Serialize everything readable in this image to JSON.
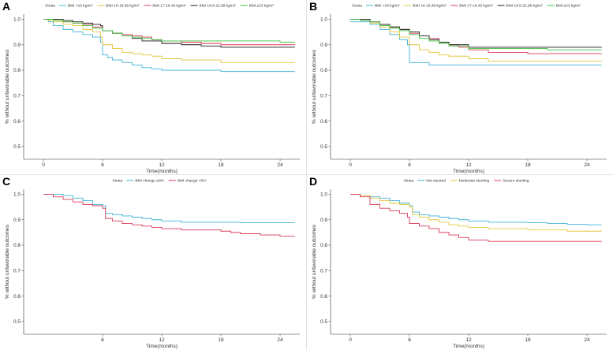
{
  "figure": {
    "y_title": "% without unfavorable outcomes",
    "x_title": "Time(months)",
    "legend_label": "Strata"
  },
  "chart_data": [
    {
      "panel": "A",
      "type": "line",
      "xlabel": "Time(months)",
      "ylabel": "% without unfavorable outcomes",
      "xlim": [
        -2,
        26
      ],
      "ylim": [
        0.45,
        1.02
      ],
      "xticks": [
        0,
        6,
        12,
        18,
        24
      ],
      "yticks": [
        0.5,
        0.6,
        0.7,
        0.8,
        0.9,
        1.0
      ],
      "legend_position": "top",
      "series": [
        {
          "name": "BMI <16 kg/m²",
          "color": "#3fb3d6",
          "x": [
            0,
            0.5,
            1,
            2,
            3,
            4,
            5,
            5.8,
            6,
            6.5,
            7,
            8,
            9,
            10,
            11,
            12,
            14,
            16,
            18,
            20,
            22,
            24,
            25.5
          ],
          "y": [
            1.0,
            0.99,
            0.975,
            0.96,
            0.95,
            0.94,
            0.93,
            0.91,
            0.86,
            0.85,
            0.84,
            0.83,
            0.82,
            0.81,
            0.805,
            0.8,
            0.8,
            0.8,
            0.795,
            0.795,
            0.795,
            0.795,
            0.795
          ]
        },
        {
          "name": "BMI 16-16.99 kg/m²",
          "color": "#e3c63b",
          "x": [
            0,
            0.5,
            1,
            2,
            3,
            4,
            5,
            5.8,
            6,
            7,
            8,
            9,
            10,
            11,
            12,
            14,
            18,
            20,
            24,
            25.5
          ],
          "y": [
            1.0,
            0.995,
            0.99,
            0.98,
            0.975,
            0.96,
            0.95,
            0.93,
            0.9,
            0.885,
            0.87,
            0.865,
            0.86,
            0.855,
            0.845,
            0.84,
            0.83,
            0.83,
            0.83,
            0.83
          ]
        },
        {
          "name": "BMI 17-18.49 kg/m²",
          "color": "#d93a5a",
          "x": [
            0,
            1,
            2,
            3,
            4,
            5,
            6,
            7,
            8,
            9,
            10,
            11,
            12,
            14,
            16,
            18,
            20,
            24,
            25.5
          ],
          "y": [
            1.0,
            0.995,
            0.99,
            0.985,
            0.98,
            0.97,
            0.955,
            0.945,
            0.94,
            0.935,
            0.93,
            0.92,
            0.915,
            0.91,
            0.905,
            0.9,
            0.9,
            0.9,
            0.9
          ]
        },
        {
          "name": "BMI 18.5-22.99 kg/m²",
          "color": "#1a1a1a",
          "x": [
            0,
            1,
            2,
            3,
            4,
            5,
            5.8,
            6,
            7,
            8,
            9,
            10,
            12,
            14,
            16,
            18,
            20,
            24,
            25.5
          ],
          "y": [
            1.0,
            1.0,
            0.995,
            0.99,
            0.985,
            0.98,
            0.975,
            0.955,
            0.945,
            0.935,
            0.925,
            0.915,
            0.905,
            0.9,
            0.895,
            0.89,
            0.89,
            0.89,
            0.89
          ]
        },
        {
          "name": "BMI ≥23 kg/m²",
          "color": "#3fc23f",
          "x": [
            0,
            1,
            2,
            3,
            4,
            5,
            6,
            7,
            8,
            9,
            10,
            11,
            12,
            14,
            24,
            25.5
          ],
          "y": [
            1.0,
            0.995,
            0.99,
            0.985,
            0.975,
            0.965,
            0.955,
            0.945,
            0.935,
            0.93,
            0.925,
            0.92,
            0.915,
            0.915,
            0.91,
            0.91
          ]
        }
      ]
    },
    {
      "panel": "B",
      "type": "line",
      "xlabel": "Time(months)",
      "ylabel": "% without unfavorable outcomes",
      "xlim": [
        -2,
        26
      ],
      "ylim": [
        0.45,
        1.02
      ],
      "xticks": [
        0,
        6,
        12,
        18,
        24
      ],
      "yticks": [
        0.5,
        0.6,
        0.7,
        0.8,
        0.9,
        1.0
      ],
      "legend_position": "top",
      "series": [
        {
          "name": "BMI <16 kg/m²",
          "color": "#3fb3d6",
          "x": [
            0,
            1,
            2,
            3,
            4,
            5,
            5.8,
            6,
            7,
            8,
            10,
            12,
            18,
            24,
            25.5
          ],
          "y": [
            0.99,
            0.99,
            0.98,
            0.96,
            0.94,
            0.92,
            0.9,
            0.83,
            0.83,
            0.82,
            0.82,
            0.82,
            0.82,
            0.82,
            0.82
          ]
        },
        {
          "name": "BMI 16-16.99 kg/m²",
          "color": "#e3c63b",
          "x": [
            0,
            1,
            2,
            3,
            4,
            5,
            6,
            7,
            8,
            9,
            10,
            12,
            14,
            18,
            24,
            25.5
          ],
          "y": [
            1.0,
            0.995,
            0.985,
            0.97,
            0.95,
            0.93,
            0.9,
            0.88,
            0.87,
            0.86,
            0.855,
            0.845,
            0.835,
            0.835,
            0.835,
            0.835
          ]
        },
        {
          "name": "BMI 17-18.49 kg/m²",
          "color": "#d93a5a",
          "x": [
            0,
            1,
            2,
            3,
            4,
            5,
            6,
            7,
            8,
            9,
            10,
            11,
            12,
            14,
            18,
            24,
            25.5
          ],
          "y": [
            1.0,
            0.995,
            0.99,
            0.98,
            0.97,
            0.96,
            0.945,
            0.935,
            0.925,
            0.91,
            0.9,
            0.89,
            0.88,
            0.87,
            0.865,
            0.865,
            0.865
          ]
        },
        {
          "name": "BMI 18.5-22.99 kg/m²",
          "color": "#1a1a1a",
          "x": [
            0,
            1,
            2,
            3,
            4,
            5,
            6,
            7,
            8,
            9,
            10,
            12,
            14,
            18,
            24,
            25.5
          ],
          "y": [
            1.0,
            1.0,
            0.99,
            0.98,
            0.97,
            0.96,
            0.95,
            0.935,
            0.92,
            0.91,
            0.9,
            0.89,
            0.89,
            0.89,
            0.89,
            0.89
          ]
        },
        {
          "name": "BMI ≥23 kg/m²",
          "color": "#3fc23f",
          "x": [
            0,
            1,
            2,
            3,
            4,
            5,
            6,
            7,
            8,
            9,
            10,
            12,
            14,
            18,
            20,
            24,
            25.5
          ],
          "y": [
            1.0,
            0.995,
            0.99,
            0.975,
            0.965,
            0.955,
            0.94,
            0.925,
            0.915,
            0.905,
            0.895,
            0.885,
            0.885,
            0.885,
            0.88,
            0.88,
            0.88
          ]
        }
      ]
    },
    {
      "panel": "C",
      "type": "line",
      "xlabel": "Time(months)",
      "ylabel": "% without unfavorable outcomes",
      "xlim": [
        -2,
        26
      ],
      "ylim": [
        0.45,
        1.02
      ],
      "xticks": [
        6,
        12,
        18,
        24
      ],
      "yticks": [
        0.5,
        0.6,
        0.7,
        0.8,
        0.9,
        1.0
      ],
      "legend_position": "top",
      "series": [
        {
          "name": "BMI change ≥0%",
          "color": "#3fb3d6",
          "x": [
            0,
            1,
            2,
            3,
            4,
            5,
            6,
            6.3,
            7,
            8,
            9,
            10,
            11,
            12,
            14,
            16,
            18,
            20,
            24,
            25.5
          ],
          "y": [
            1.0,
            1.0,
            0.995,
            0.985,
            0.975,
            0.96,
            0.955,
            0.925,
            0.92,
            0.915,
            0.91,
            0.905,
            0.9,
            0.895,
            0.89,
            0.89,
            0.89,
            0.888,
            0.888,
            0.888
          ]
        },
        {
          "name": "BMI change <0%",
          "color": "#d93a5a",
          "x": [
            0,
            1,
            2,
            3,
            4,
            5,
            6,
            6.3,
            7,
            8,
            9,
            10,
            11,
            12,
            14,
            16,
            18,
            19,
            20,
            22,
            24,
            25.5
          ],
          "y": [
            1.0,
            0.99,
            0.98,
            0.97,
            0.96,
            0.955,
            0.945,
            0.905,
            0.895,
            0.885,
            0.88,
            0.875,
            0.87,
            0.865,
            0.86,
            0.86,
            0.855,
            0.85,
            0.845,
            0.84,
            0.835,
            0.835
          ]
        }
      ]
    },
    {
      "panel": "D",
      "type": "line",
      "xlabel": "Time(months)",
      "ylabel": "% without unfavorable outcomes",
      "xlim": [
        -2,
        26
      ],
      "ylim": [
        0.45,
        1.02
      ],
      "xticks": [
        0,
        6,
        12,
        18,
        24
      ],
      "yticks": [
        0.5,
        0.6,
        0.7,
        0.8,
        0.9,
        1.0
      ],
      "legend_position": "top",
      "series": [
        {
          "name": "Not stunted",
          "color": "#3fb3d6",
          "x": [
            0,
            1,
            2,
            3,
            4,
            5,
            6,
            6.3,
            7,
            8,
            9,
            10,
            11,
            12,
            14,
            16,
            18,
            20,
            22,
            24,
            25.5
          ],
          "y": [
            1.0,
            0.995,
            0.99,
            0.985,
            0.975,
            0.965,
            0.955,
            0.93,
            0.92,
            0.915,
            0.91,
            0.905,
            0.9,
            0.895,
            0.89,
            0.89,
            0.888,
            0.885,
            0.882,
            0.88,
            0.88
          ]
        },
        {
          "name": "Moderate stunting",
          "color": "#e3c63b",
          "x": [
            0,
            1,
            2,
            3,
            4,
            5,
            6,
            6.3,
            7,
            8,
            9,
            10,
            11,
            12,
            14,
            16,
            18,
            20,
            22,
            24,
            25.5
          ],
          "y": [
            1.0,
            0.995,
            0.985,
            0.975,
            0.965,
            0.96,
            0.95,
            0.92,
            0.91,
            0.9,
            0.89,
            0.88,
            0.875,
            0.87,
            0.865,
            0.865,
            0.86,
            0.86,
            0.855,
            0.855,
            0.855
          ]
        },
        {
          "name": "Severe stunting",
          "color": "#d93a5a",
          "x": [
            0,
            1,
            2,
            3,
            4,
            5,
            5.8,
            6,
            7,
            8,
            9,
            10,
            11,
            12,
            14,
            18,
            24,
            25.5
          ],
          "y": [
            1.0,
            0.99,
            0.96,
            0.945,
            0.935,
            0.925,
            0.91,
            0.885,
            0.875,
            0.865,
            0.85,
            0.84,
            0.83,
            0.82,
            0.815,
            0.815,
            0.815,
            0.815
          ]
        }
      ]
    }
  ]
}
